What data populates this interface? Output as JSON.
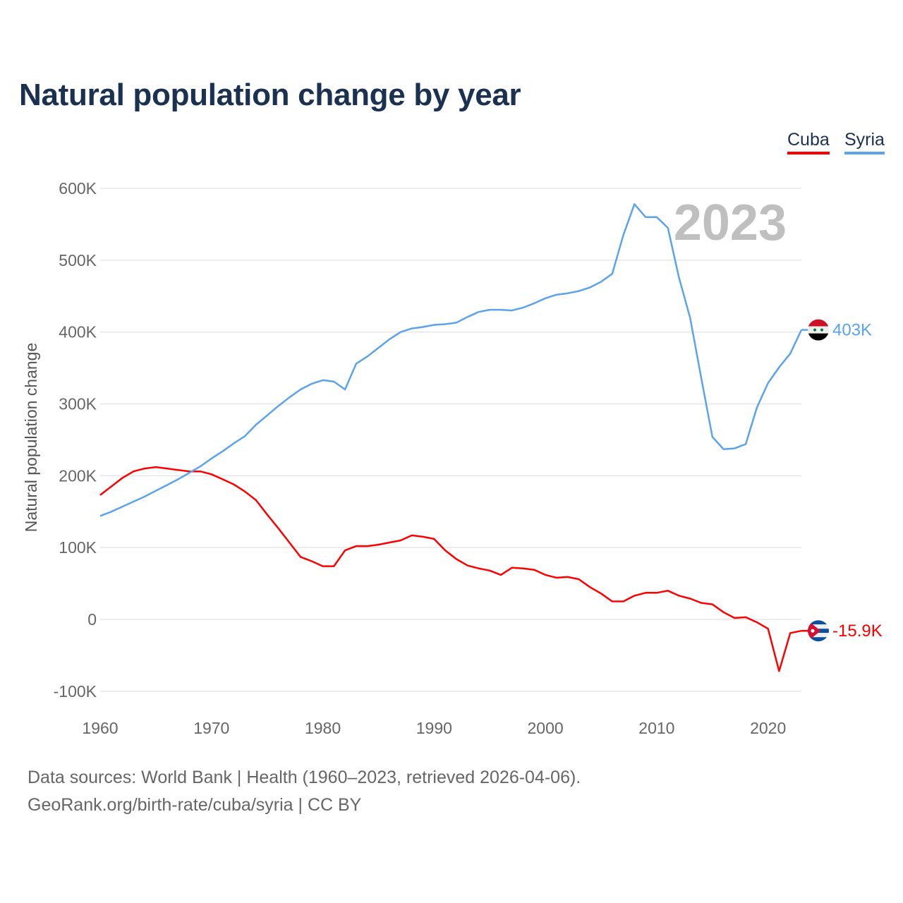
{
  "title": "Natural population change by year",
  "legend": [
    {
      "label": "Cuba",
      "color": "#ff0000"
    },
    {
      "label": "Syria",
      "color": "#5ba3ea"
    }
  ],
  "footer": {
    "line1": "Data sources: World Bank | Health (1960–2023, retrieved 2026-04-06).",
    "line2": "GeoRank.org/birth-rate/cuba/syria | CC BY"
  },
  "chart_data": {
    "type": "line",
    "title": "Natural population change by year",
    "xlabel": "",
    "ylabel": "Natural population change",
    "year_watermark": "2023",
    "xlim": [
      1960,
      2023
    ],
    "ylim": [
      -100000,
      600000
    ],
    "x_ticks": [
      "1960",
      "1970",
      "1980",
      "1990",
      "2000",
      "2010",
      "2020"
    ],
    "y_ticks": [
      {
        "value": 600000,
        "label": "600K"
      },
      {
        "value": 500000,
        "label": "500K"
      },
      {
        "value": 400000,
        "label": "400K"
      },
      {
        "value": 300000,
        "label": "300K"
      },
      {
        "value": 200000,
        "label": "200K"
      },
      {
        "value": 100000,
        "label": "100K"
      },
      {
        "value": 0,
        "label": "0"
      },
      {
        "value": -100000,
        "label": "-100K"
      }
    ],
    "grid": true,
    "legend_position": "top-right",
    "x_start": 1960,
    "series": [
      {
        "name": "Cuba",
        "color": "#ff0000",
        "end_label": "-15.9K",
        "flag": "cuba-flag",
        "values": [
          173000,
          185000,
          197000,
          206000,
          210000,
          212000,
          210000,
          208000,
          206000,
          206000,
          202000,
          195000,
          188000,
          178000,
          166000,
          146000,
          127000,
          107000,
          87000,
          81000,
          74000,
          74000,
          96000,
          102000,
          102000,
          104000,
          107000,
          110000,
          117000,
          115000,
          112000,
          96000,
          84000,
          75000,
          71000,
          68000,
          62000,
          72000,
          71000,
          69000,
          62000,
          58000,
          59000,
          56000,
          45000,
          36000,
          25000,
          25000,
          33000,
          37000,
          37000,
          40000,
          33000,
          29000,
          23000,
          21000,
          10000,
          2000,
          3000,
          -4000,
          -13000,
          -72000,
          -19000,
          -15900
        ]
      },
      {
        "name": "Syria",
        "color": "#5ba3ea",
        "end_label": "403K",
        "flag": "syria-flag",
        "values": [
          144000,
          150000,
          157000,
          164000,
          171000,
          179000,
          187000,
          195000,
          204000,
          213000,
          224000,
          234000,
          245000,
          255000,
          271000,
          284000,
          297000,
          309000,
          320000,
          328000,
          333000,
          331000,
          320000,
          356000,
          366000,
          378000,
          390000,
          400000,
          405000,
          407000,
          410000,
          411000,
          413000,
          421000,
          428000,
          431000,
          431000,
          430000,
          434000,
          440000,
          447000,
          452000,
          454000,
          457000,
          462000,
          470000,
          481000,
          535000,
          578000,
          560000,
          560000,
          545000,
          476000,
          420000,
          336000,
          254000,
          237000,
          238000,
          244000,
          295000,
          329000,
          351000,
          370000,
          403000
        ]
      }
    ]
  }
}
